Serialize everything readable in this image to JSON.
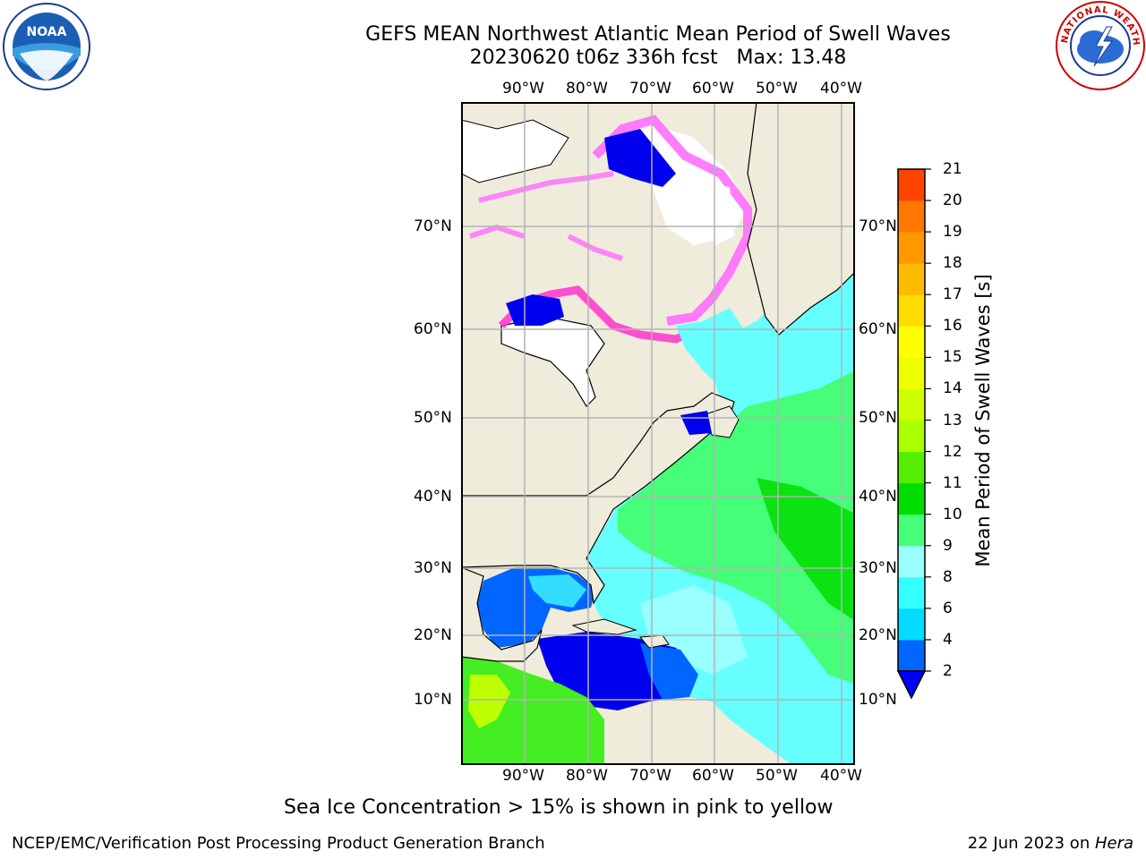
{
  "header": {
    "title_line1": "GEFS MEAN Northwest Atlantic Mean Period of Swell Waves",
    "title_line2": "20230620 t06z 336h fcst   Max: 13.48"
  },
  "logos": {
    "noaa": {
      "icon": "noaa-logo",
      "text": "NOAA"
    },
    "nws": {
      "icon": "nws-logo",
      "text": "NATIONAL WEATHER SERVICE"
    }
  },
  "map": {
    "lon_labels": [
      "90°W",
      "80°W",
      "70°W",
      "60°W",
      "50°W",
      "40°W"
    ],
    "lat_labels": [
      "70°N",
      "60°N",
      "50°N",
      "40°N",
      "30°N",
      "20°N",
      "10°N"
    ],
    "colors": {
      "land": "#efecdc",
      "ice_free_land_white": "#ffffff",
      "grid": "#b3b3b3",
      "sea_ice_pink": "#ff66ff",
      "sea_ice_magenta": "#ff33cc"
    }
  },
  "colorbar": {
    "label": "Mean Period of Swell Waves [s]",
    "ticks": [
      "2",
      "4",
      "6",
      "8",
      "9",
      "10",
      "11",
      "12",
      "13",
      "14",
      "15",
      "16",
      "17",
      "18",
      "19",
      "20",
      "21"
    ],
    "colors": [
      "#0066ff",
      "#00ddff",
      "#33ffff",
      "#99ffff",
      "#44ff77",
      "#00dd00",
      "#55ee00",
      "#aaff00",
      "#ccff00",
      "#eeff00",
      "#ffff00",
      "#ffdd00",
      "#ffbb00",
      "#ff9900",
      "#ff7700",
      "#ff4400",
      "#ff0000"
    ],
    "extend_color": "#0000ff"
  },
  "footer": {
    "ice_note": "Sea Ice Concentration > 15% is shown in pink to yellow",
    "left": "NCEP/EMC/Verification Post Processing Product Generation Branch",
    "right_prefix": "22 Jun 2023 on ",
    "right_machine": "Hera"
  }
}
